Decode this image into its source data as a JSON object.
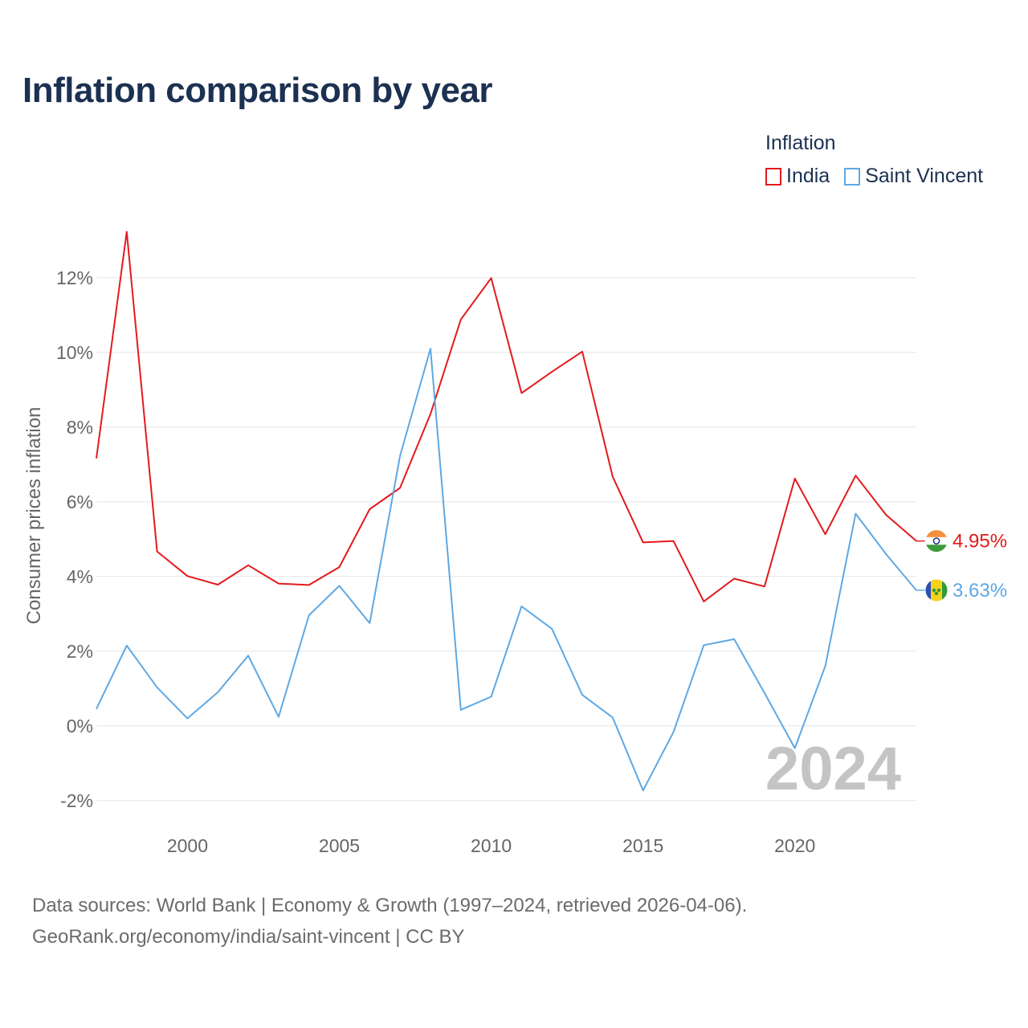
{
  "title": "Inflation comparison by year",
  "legend": {
    "title": "Inflation",
    "items": [
      {
        "label": "India",
        "color": "#e31a1c"
      },
      {
        "label": "Saint Vincent",
        "color": "#5fa8e3"
      }
    ]
  },
  "watermark_year": "2024",
  "footer": {
    "line1": "Data sources: World Bank | Economy & Growth (1997–2024, retrieved 2026-04-06).",
    "line2": "GeoRank.org/economy/india/saint-vincent | CC BY"
  },
  "chart_data": {
    "type": "line",
    "title": "Inflation comparison by year",
    "xlabel": "",
    "ylabel": "Consumer prices inflation",
    "xlim": [
      1997,
      2024
    ],
    "ylim": [
      -2.5,
      13.5
    ],
    "x_ticks": [
      2000,
      2005,
      2010,
      2015,
      2020
    ],
    "y_ticks": [
      -2,
      0,
      2,
      4,
      6,
      8,
      10,
      12
    ],
    "y_tick_labels": [
      "-2%",
      "0%",
      "2%",
      "4%",
      "6%",
      "8%",
      "10%",
      "12%"
    ],
    "grid": true,
    "legend_position": "top-right",
    "x": [
      1997,
      1998,
      1999,
      2000,
      2001,
      2002,
      2003,
      2004,
      2005,
      2006,
      2007,
      2008,
      2009,
      2010,
      2011,
      2012,
      2013,
      2014,
      2015,
      2016,
      2017,
      2018,
      2019,
      2020,
      2021,
      2022,
      2023,
      2024
    ],
    "series": [
      {
        "name": "India",
        "color": "#e31a1c",
        "end_label": "4.95%",
        "flag": "india-flag-icon",
        "values": [
          7.16,
          13.23,
          4.67,
          4.01,
          3.78,
          4.3,
          3.81,
          3.77,
          4.25,
          5.8,
          6.37,
          8.35,
          10.88,
          11.99,
          8.91,
          9.48,
          10.02,
          6.67,
          4.91,
          4.95,
          3.33,
          3.94,
          3.73,
          6.62,
          5.13,
          6.7,
          5.65,
          4.95
        ]
      },
      {
        "name": "Saint Vincent",
        "color": "#5fa8e3",
        "end_label": "3.63%",
        "flag": "saint-vincent-flag-icon",
        "values": [
          0.45,
          2.15,
          1.03,
          0.2,
          0.9,
          1.88,
          0.24,
          2.96,
          3.75,
          2.75,
          7.23,
          10.1,
          0.43,
          0.78,
          3.2,
          2.6,
          0.83,
          0.22,
          -1.73,
          -0.17,
          2.16,
          2.32,
          0.88,
          -0.6,
          1.6,
          5.68,
          4.6,
          3.63
        ]
      }
    ]
  }
}
